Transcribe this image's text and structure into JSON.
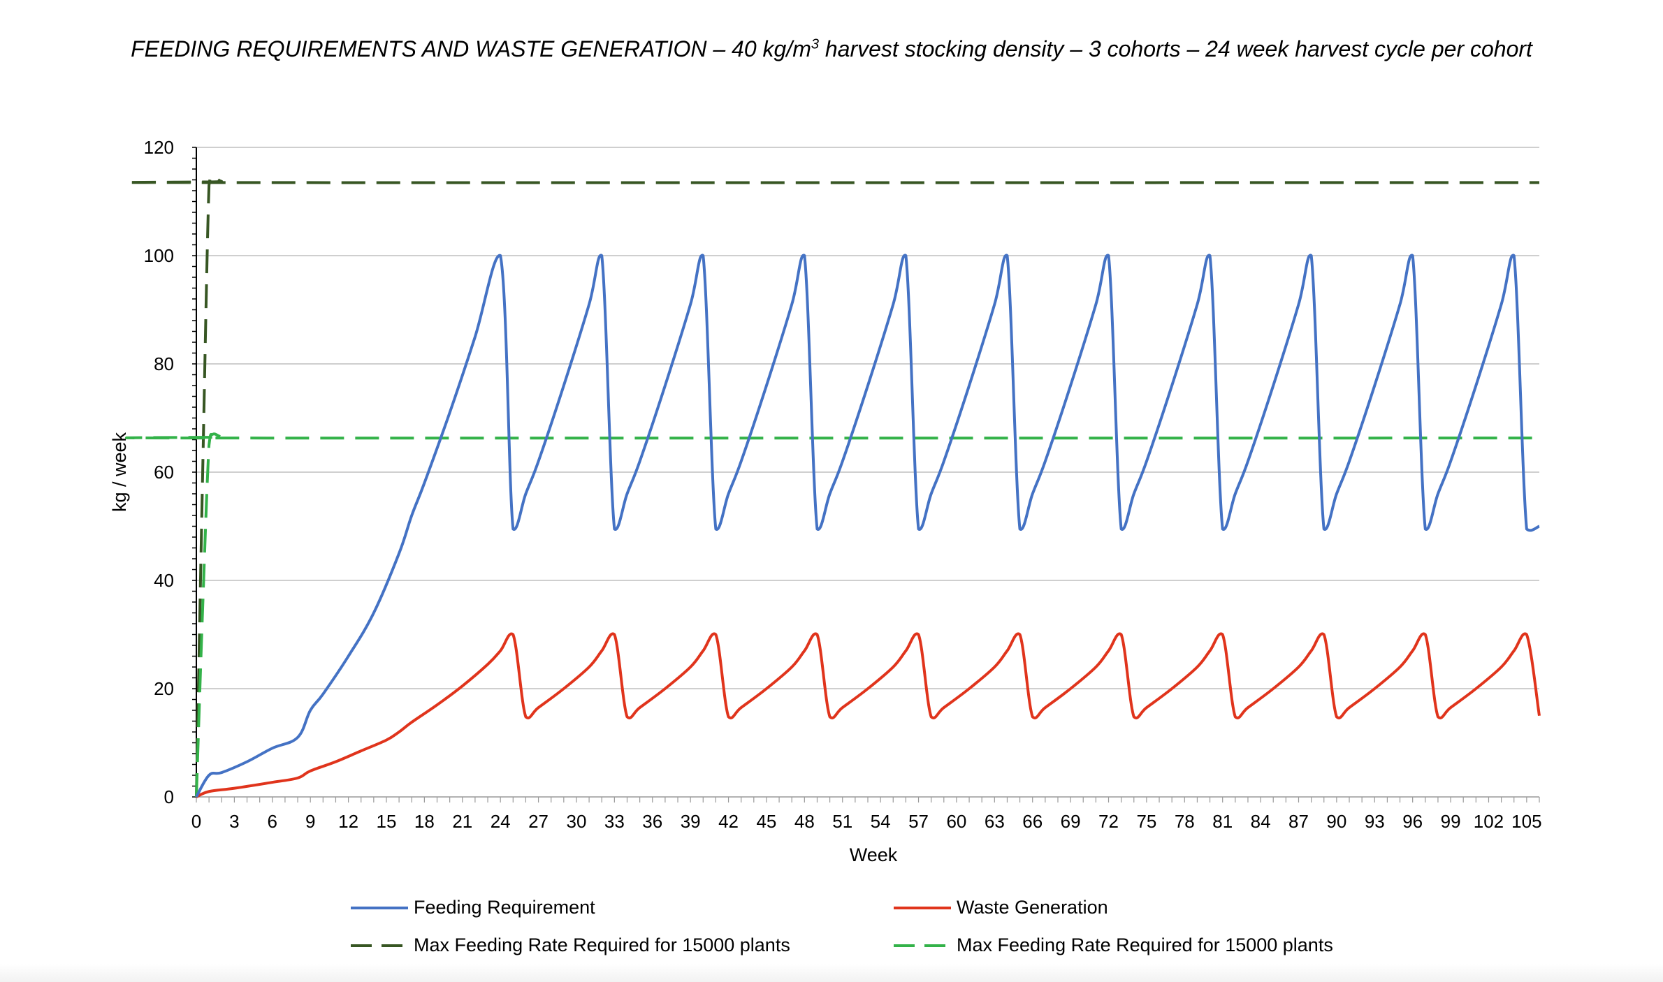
{
  "chart_data": {
    "type": "line",
    "title_parts": {
      "before": "FEEDING REQUIREMENTS AND WASTE GENERATION – 40 kg/m",
      "superscript": "3",
      "after": " harvest stocking density –  3 cohorts – 24 week harvest cycle per cohort"
    },
    "xlabel": "Week",
    "ylabel": "kg / week",
    "xlim": [
      0,
      106
    ],
    "ylim": [
      0,
      120
    ],
    "y_ticks": [
      0,
      20,
      40,
      60,
      80,
      100,
      120
    ],
    "x_ticks": [
      0,
      3,
      6,
      9,
      12,
      15,
      18,
      21,
      24,
      27,
      30,
      33,
      36,
      39,
      42,
      45,
      48,
      51,
      54,
      57,
      60,
      63,
      66,
      69,
      72,
      75,
      78,
      81,
      84,
      87,
      90,
      93,
      96,
      99,
      102,
      105
    ],
    "grid": "horizontal",
    "legend_position": "bottom",
    "series": [
      {
        "name": "Feeding Requirement",
        "color": "#4472C4",
        "style": "solid",
        "x": [
          0,
          1,
          2,
          4,
          6,
          8,
          9,
          10,
          12,
          14,
          16,
          17,
          18,
          20,
          22,
          24,
          25,
          26,
          27,
          29,
          31,
          32,
          33,
          34,
          35,
          37,
          39,
          40,
          41,
          42,
          43,
          45,
          47,
          48,
          49,
          50,
          51,
          53,
          55,
          56,
          57,
          58,
          59,
          61,
          63,
          64,
          65,
          66,
          67,
          69,
          71,
          72,
          73,
          74,
          75,
          77,
          79,
          80,
          81,
          82,
          83,
          85,
          87,
          88,
          89,
          90,
          91,
          93,
          95,
          96,
          97,
          98,
          99,
          101,
          103,
          104,
          105,
          106
        ],
        "values": [
          0,
          4,
          4.5,
          6.5,
          9,
          11,
          16,
          19,
          26,
          34,
          45,
          52,
          58,
          71,
          85,
          100,
          49.5,
          56,
          62,
          76,
          91,
          100,
          49.5,
          56,
          62,
          76,
          91,
          100,
          49.5,
          56,
          62,
          76,
          91,
          100,
          49.5,
          56,
          62,
          76,
          91,
          100,
          49.5,
          56,
          62,
          76,
          91,
          100,
          49.5,
          56,
          62,
          76,
          91,
          100,
          49.5,
          56,
          62,
          76,
          91,
          100,
          49.5,
          56,
          62,
          76,
          91,
          100,
          49.5,
          56,
          62,
          76,
          91,
          100,
          49.5,
          56,
          62,
          76,
          91,
          100,
          49.5,
          50
        ]
      },
      {
        "name": "Waste Generation",
        "color": "#E0341C",
        "style": "solid",
        "x": [
          0,
          1,
          3,
          6,
          8,
          9,
          11,
          13,
          15,
          16,
          17,
          19,
          21,
          23,
          24,
          25,
          26,
          27,
          29,
          31,
          32,
          33,
          34,
          35,
          37,
          39,
          40,
          41,
          42,
          43,
          45,
          47,
          48,
          49,
          50,
          51,
          53,
          55,
          56,
          57,
          58,
          59,
          61,
          63,
          64,
          65,
          66,
          67,
          69,
          71,
          72,
          73,
          74,
          75,
          77,
          79,
          80,
          81,
          82,
          83,
          85,
          87,
          88,
          89,
          90,
          91,
          93,
          95,
          96,
          97,
          98,
          99,
          101,
          103,
          104,
          105,
          106
        ],
        "values": [
          0,
          1,
          1.6,
          2.7,
          3.5,
          4.8,
          6.5,
          8.5,
          10.5,
          12,
          13.8,
          17,
          20.5,
          24.5,
          27,
          30,
          14.8,
          16.5,
          20,
          24,
          27,
          30,
          14.8,
          16.5,
          20,
          24,
          27,
          30,
          14.8,
          16.5,
          20,
          24,
          27,
          30,
          14.8,
          16.5,
          20,
          24,
          27,
          30,
          14.8,
          16.5,
          20,
          24,
          27,
          30,
          14.8,
          16.5,
          20,
          24,
          27,
          30,
          14.8,
          16.5,
          20,
          24,
          27,
          30,
          14.8,
          16.5,
          20,
          24,
          27,
          30,
          14.8,
          16.5,
          20,
          24,
          27,
          30,
          14.8,
          16.5,
          20,
          24,
          27,
          30,
          15
        ]
      },
      {
        "name": "Max Feeding Rate Required for 15000 plants",
        "color": "#375623",
        "style": "dashed",
        "x": [
          0,
          0.5,
          1,
          1.3,
          2,
          3,
          106
        ],
        "values": [
          0,
          60,
          113,
          114.5,
          113.7,
          113.5,
          113.5
        ]
      },
      {
        "name": "Max Feeding Rate Required for 15000 plants",
        "color": "#33B249",
        "style": "dashed",
        "x": [
          0,
          0.5,
          1,
          1.3,
          2,
          3,
          106
        ],
        "values": [
          0,
          35,
          65,
          67,
          66.5,
          66.3,
          66.3
        ]
      }
    ]
  }
}
